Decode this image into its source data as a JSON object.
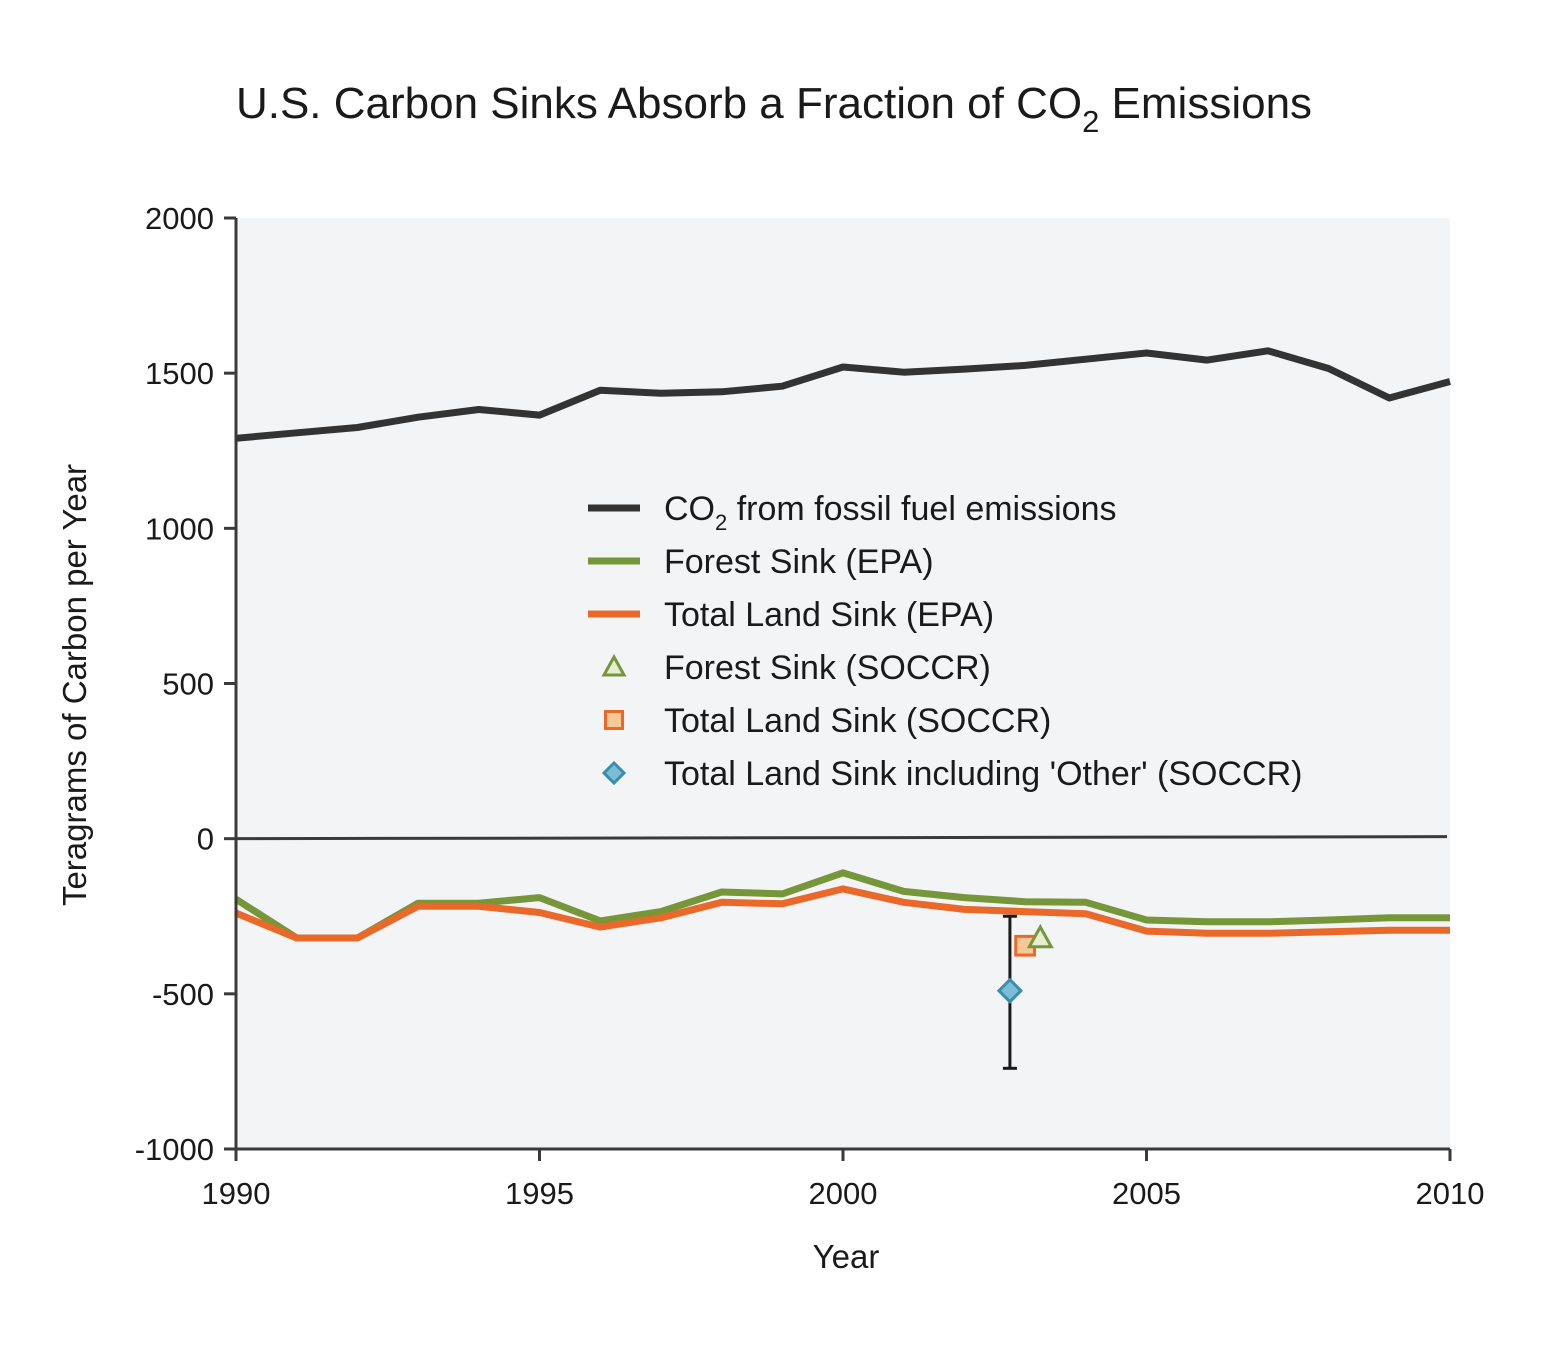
{
  "chart_data": {
    "type": "line",
    "title": {
      "main": "U.S. Carbon Sinks Absorb a Fraction of CO",
      "subscript": "2",
      "suffix": " Emissions"
    },
    "xlabel": "Year",
    "ylabel": "Teragrams of Carbon per Year",
    "xlim": [
      1990,
      2010
    ],
    "ylim": [
      -1000,
      2000
    ],
    "x_ticks": [
      1990,
      1995,
      2000,
      2005,
      2010
    ],
    "x_tick_labels": [
      "1990",
      "1995",
      "2000",
      "2005",
      "2010"
    ],
    "y_ticks": [
      2000,
      1500,
      1000,
      500,
      0,
      -500,
      -1000
    ],
    "y_tick_labels": [
      "2000",
      "1500",
      "1000",
      "500",
      "0",
      "-500",
      "-1000"
    ],
    "grid": false,
    "legend_position": "center",
    "colors": {
      "plot_background": "#f3f4f5",
      "axis": "#3a3a3a",
      "fossil": "#333333",
      "forest": "#76963a",
      "land": "#e8692a",
      "forest_marker_fill": "#e5eed2",
      "land_marker_fill": "#f8c995",
      "other_marker": "#3b8eaa",
      "other_marker_fill": "#7bbcd6",
      "error_bar": "#1a1a1a"
    },
    "x": [
      1990,
      1991,
      1992,
      1993,
      1994,
      1995,
      1996,
      1997,
      1998,
      1999,
      2000,
      2001,
      2002,
      2003,
      2004,
      2005,
      2006,
      2007,
      2008,
      2009,
      2010
    ],
    "series": [
      {
        "name": "CO",
        "name_sub": "2",
        "name_suffix": " from fossil fuel emissions",
        "key": "fossil",
        "values": [
          1290,
          1308,
          1325,
          1358,
          1383,
          1365,
          1445,
          1435,
          1440,
          1458,
          1520,
          1503,
          1513,
          1525,
          1545,
          1565,
          1542,
          1572,
          1515,
          1420,
          1473
        ]
      },
      {
        "name": "Forest Sink (EPA)",
        "key": "forest",
        "values": [
          -195,
          -320,
          -320,
          -208,
          -208,
          -190,
          -265,
          -235,
          -172,
          -178,
          -110,
          -170,
          -190,
          -203,
          -205,
          -262,
          -268,
          -268,
          -262,
          -255,
          -255
        ]
      },
      {
        "name": "Total Land Sink (EPA)",
        "key": "land",
        "values": [
          -240,
          -320,
          -320,
          -218,
          -218,
          -238,
          -285,
          -255,
          -205,
          -210,
          -162,
          -205,
          -228,
          -235,
          -242,
          -298,
          -305,
          -305,
          -300,
          -295,
          -295
        ]
      }
    ],
    "points": [
      {
        "name": "Forest Sink (SOCCR)",
        "key": "forest_soccr",
        "marker": "triangle",
        "x": 2003.25,
        "y": -320
      },
      {
        "name": "Total Land Sink (SOCCR)",
        "key": "land_soccr",
        "marker": "square",
        "x": 2003,
        "y": -345
      },
      {
        "name": "Total Land Sink including 'Other' (SOCCR)",
        "key": "other_soccr",
        "marker": "diamond",
        "x": 2002.75,
        "y": -490,
        "error_low": -740,
        "error_high": -250
      }
    ],
    "legend": [
      {
        "key": "fossil",
        "label": "CO",
        "sub": "2",
        "suffix": " from fossil fuel emissions",
        "symbol": "line"
      },
      {
        "key": "forest",
        "label": "Forest Sink (EPA)",
        "symbol": "line"
      },
      {
        "key": "land",
        "label": "Total Land Sink (EPA)",
        "symbol": "line"
      },
      {
        "key": "forest_soccr",
        "label": "Forest Sink (SOCCR)",
        "symbol": "triangle"
      },
      {
        "key": "land_soccr",
        "label": "Total Land Sink (SOCCR)",
        "symbol": "square"
      },
      {
        "key": "other_soccr",
        "label": "Total Land Sink including 'Other' (SOCCR)",
        "symbol": "diamond"
      }
    ]
  }
}
